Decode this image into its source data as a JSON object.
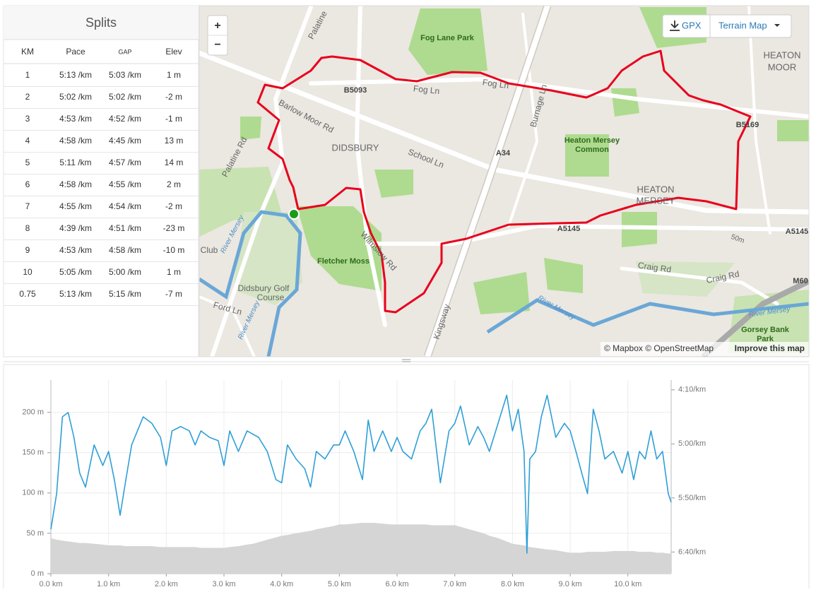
{
  "splits": {
    "title": "Splits",
    "columns": [
      "KM",
      "Pace",
      "GAP",
      "Elev"
    ],
    "rows": [
      [
        "1",
        "5:13 /km",
        "5:03 /km",
        "1 m"
      ],
      [
        "2",
        "5:02 /km",
        "5:02 /km",
        "-2 m"
      ],
      [
        "3",
        "4:53 /km",
        "4:52 /km",
        "-1 m"
      ],
      [
        "4",
        "4:58 /km",
        "4:45 /km",
        "13 m"
      ],
      [
        "5",
        "5:11 /km",
        "4:57 /km",
        "14 m"
      ],
      [
        "6",
        "4:58 /km",
        "4:55 /km",
        "2 m"
      ],
      [
        "7",
        "4:55 /km",
        "4:54 /km",
        "-2 m"
      ],
      [
        "8",
        "4:39 /km",
        "4:51 /km",
        "-23 m"
      ],
      [
        "9",
        "4:53 /km",
        "4:58 /km",
        "-10 m"
      ],
      [
        "10",
        "5:05 /km",
        "5:00 /km",
        "1 m"
      ],
      [
        "0.75",
        "5:13 /km",
        "5:15 /km",
        "-7 m"
      ]
    ]
  },
  "map": {
    "zoom_in": "+",
    "zoom_out": "−",
    "gpx": "GPX",
    "map_type": "Terrain Map",
    "labels": [
      "Fog Lane Park",
      "HEATON",
      "MOOR",
      "B5093",
      "Fog Ln",
      "Fog Ln",
      "Barlow Moor Rd",
      "DIDSBURY",
      "School Ln",
      "A34",
      "Burnage Ln",
      "Heaton Mersey",
      "Common",
      "B5169",
      "HEATON",
      "MERSEY",
      "A5145",
      "A5145",
      "Palatine Rd",
      "Palatine",
      "Wilmslow Rd",
      "Fletcher Moss",
      "River Mersey",
      "Didsbury Golf",
      "Course",
      "Ford Ln",
      "Craig Rd",
      "Craig Rd",
      "River Mersey",
      "River Mersey",
      "Gorsey Bank",
      "Park",
      "Kingsway",
      "M60",
      "Club",
      "50m",
      "River Mersey"
    ],
    "attribution": "© Mapbox © OpenStreetMap",
    "improve": "Improve this map"
  },
  "chart_data": {
    "type": "line",
    "x": [
      0,
      0.1,
      0.2,
      0.3,
      0.4,
      0.5,
      0.6,
      0.75,
      0.9,
      1.0,
      1.1,
      1.2,
      1.3,
      1.4,
      1.5,
      1.6,
      1.75,
      1.9,
      2.0,
      2.1,
      2.25,
      2.4,
      2.5,
      2.6,
      2.75,
      2.9,
      3.0,
      3.1,
      3.25,
      3.4,
      3.5,
      3.6,
      3.75,
      3.9,
      4.0,
      4.1,
      4.25,
      4.4,
      4.5,
      4.6,
      4.75,
      4.9,
      5.0,
      5.1,
      5.25,
      5.4,
      5.5,
      5.6,
      5.75,
      5.9,
      6.0,
      6.1,
      6.25,
      6.4,
      6.5,
      6.6,
      6.75,
      6.9,
      7.0,
      7.1,
      7.25,
      7.4,
      7.5,
      7.6,
      7.75,
      7.9,
      8.0,
      8.1,
      8.2,
      8.25,
      8.3,
      8.4,
      8.5,
      8.6,
      8.75,
      8.9,
      9.0,
      9.1,
      9.2,
      9.3,
      9.4,
      9.5,
      9.6,
      9.75,
      9.9,
      10.0,
      10.1,
      10.2,
      10.3,
      10.4,
      10.5,
      10.6,
      10.7,
      10.75
    ],
    "series": [
      {
        "type": "area",
        "color": "#d5d5d5",
        "values": [
          44,
          42,
          41,
          40,
          39,
          38,
          38,
          37,
          36,
          35,
          35,
          35,
          34,
          34,
          34,
          34,
          34,
          33,
          33,
          33,
          33,
          33,
          33,
          32,
          32,
          32,
          32,
          33,
          34,
          36,
          37,
          39,
          42,
          45,
          47,
          48,
          50,
          52,
          53,
          55,
          57,
          59,
          61,
          61,
          62,
          63,
          63,
          63,
          62,
          61,
          61,
          61,
          61,
          61,
          61,
          60,
          60,
          60,
          60,
          58,
          55,
          52,
          50,
          47,
          44,
          40,
          37,
          36,
          35,
          34,
          33,
          32,
          31,
          30,
          29,
          27,
          26,
          26,
          26,
          27,
          27,
          27,
          27,
          28,
          28,
          28,
          28,
          27,
          27,
          27,
          26,
          26,
          25,
          25
        ]
      },
      {
        "type": "line",
        "axis": "y2",
        "color": "#2e9fd6",
        "values": [
          379,
          346,
          275,
          271,
          294,
          327,
          340,
          301,
          320,
          307,
          333,
          366,
          333,
          301,
          288,
          275,
          281,
          294,
          320,
          288,
          284,
          288,
          301,
          288,
          294,
          297,
          320,
          288,
          307,
          288,
          291,
          294,
          307,
          333,
          336,
          301,
          314,
          323,
          340,
          307,
          314,
          301,
          301,
          288,
          307,
          333,
          278,
          307,
          288,
          307,
          294,
          307,
          314,
          288,
          281,
          268,
          336,
          288,
          281,
          265,
          301,
          284,
          294,
          307,
          281,
          255,
          288,
          268,
          307,
          401,
          314,
          307,
          275,
          255,
          294,
          281,
          288,
          307,
          327,
          346,
          268,
          288,
          314,
          307,
          327,
          307,
          333,
          307,
          314,
          288,
          314,
          307,
          346,
          354
        ]
      }
    ],
    "xlim": [
      0,
      10.75
    ],
    "xticks": [
      {
        "value": 0,
        "label": "0.0 km"
      },
      {
        "value": 1,
        "label": "1.0 km"
      },
      {
        "value": 2,
        "label": "2.0 km"
      },
      {
        "value": 3,
        "label": "3.0 km"
      },
      {
        "value": 4,
        "label": "4.0 km"
      },
      {
        "value": 5,
        "label": "5.0 km"
      },
      {
        "value": 6,
        "label": "6.0 km"
      },
      {
        "value": 7,
        "label": "7.0 km"
      },
      {
        "value": 8,
        "label": "8.0 km"
      },
      {
        "value": 9,
        "label": "9.0 km"
      },
      {
        "value": 10,
        "label": "10.0 km"
      }
    ],
    "ylim": [
      0,
      240
    ],
    "yticks": [
      {
        "value": 0,
        "label": "0 m"
      },
      {
        "value": 50,
        "label": "50 m"
      },
      {
        "value": 100,
        "label": "100 m"
      },
      {
        "value": 150,
        "label": "150 m"
      },
      {
        "value": 200,
        "label": "200 m"
      }
    ],
    "y2lim": [
      241,
      420
    ],
    "y2_reversed": true,
    "y2ticks": [
      {
        "value": 250,
        "label": "4:10/km"
      },
      {
        "value": 300,
        "label": "5:00/km"
      },
      {
        "value": 350,
        "label": "5:50/km"
      },
      {
        "value": 400,
        "label": "6:40/km"
      }
    ],
    "grid": true
  }
}
